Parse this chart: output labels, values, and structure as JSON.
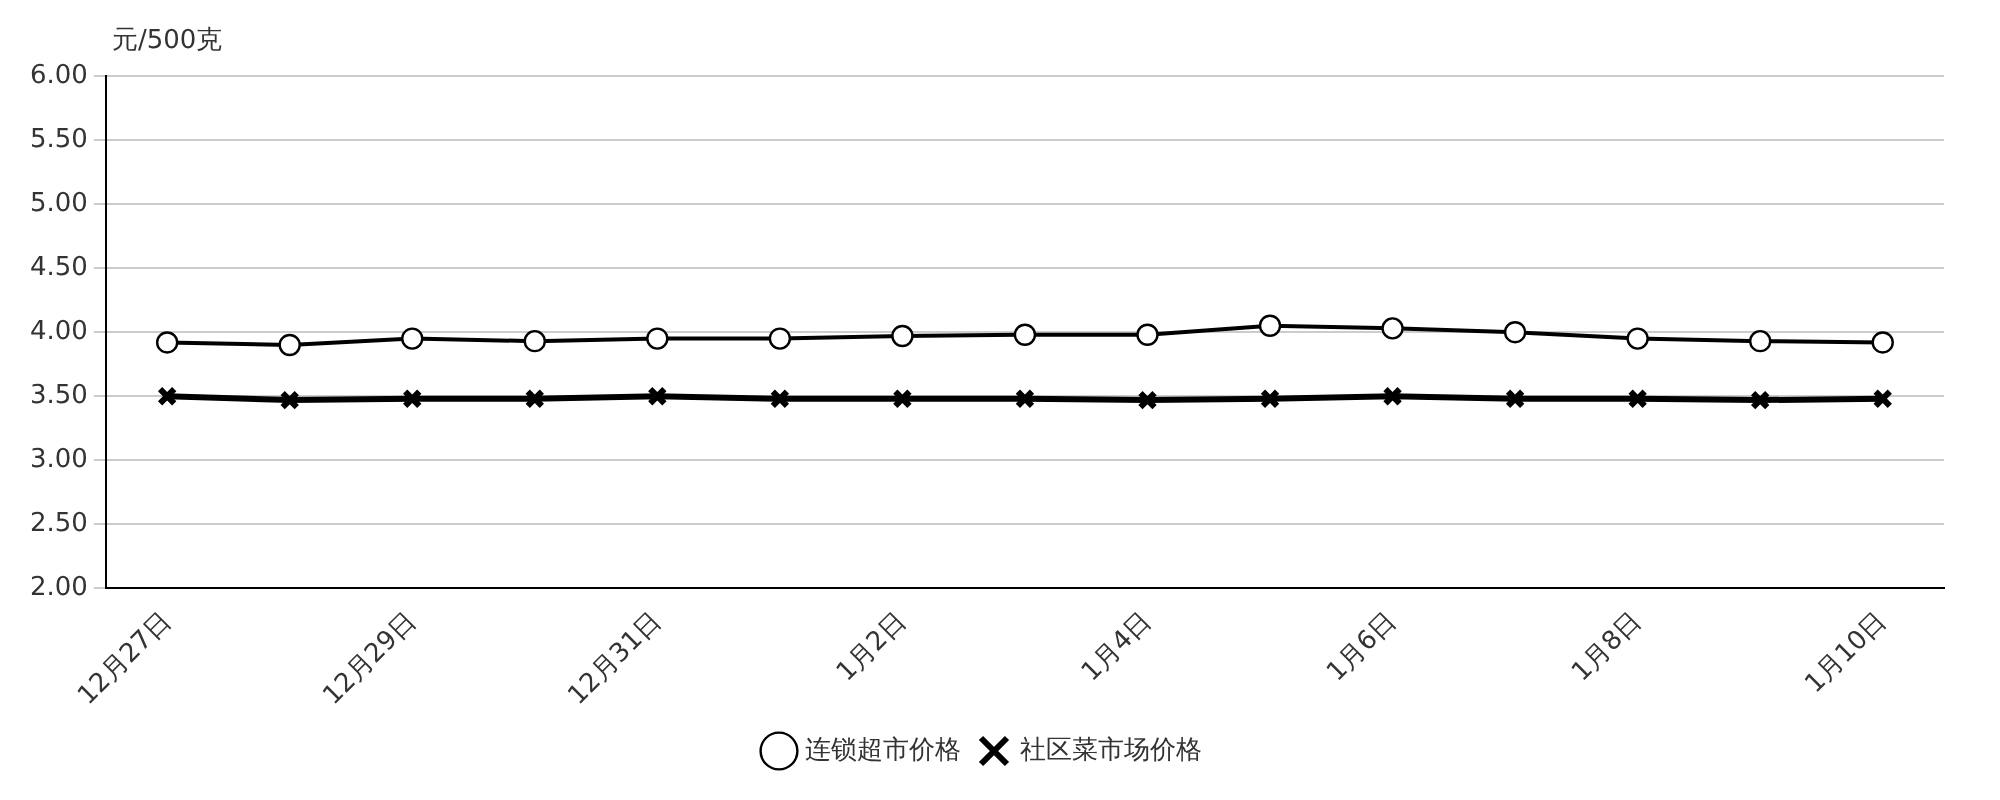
{
  "chart_data": {
    "type": "line",
    "ylabel": "元/500克",
    "categories": [
      "12月27日",
      null,
      "12月29日",
      null,
      "12月31日",
      null,
      "1月2日",
      null,
      "1月4日",
      null,
      "1月6日",
      null,
      "1月8日",
      null,
      "1月10日"
    ],
    "series": [
      {
        "name": "连锁超市价格",
        "color": "#000000",
        "marker": "circle",
        "values": [
          3.92,
          3.9,
          3.95,
          3.93,
          3.95,
          3.95,
          3.97,
          3.98,
          3.98,
          4.05,
          4.03,
          4.0,
          3.95,
          3.93,
          3.92
        ]
      },
      {
        "name": "社区菜市场价格",
        "color": "#000000",
        "marker": "cross",
        "values": [
          3.5,
          3.47,
          3.48,
          3.48,
          3.5,
          3.48,
          3.48,
          3.48,
          3.47,
          3.48,
          3.5,
          3.48,
          3.48,
          3.47,
          3.48
        ]
      }
    ],
    "ylim": [
      2,
      6
    ],
    "yticks": [
      {
        "value": 2,
        "label": "2.00"
      },
      {
        "value": 2.5,
        "label": "2.50"
      },
      {
        "value": 3,
        "label": "3.00"
      },
      {
        "value": 3.5,
        "label": "3.50"
      },
      {
        "value": 4,
        "label": "4.00"
      },
      {
        "value": 4.5,
        "label": "4.50"
      },
      {
        "value": 5,
        "label": "5.00"
      },
      {
        "value": 5.5,
        "label": "5.50"
      },
      {
        "value": 6,
        "label": "6.00"
      }
    ],
    "grid": "y",
    "legend": "bottom"
  }
}
